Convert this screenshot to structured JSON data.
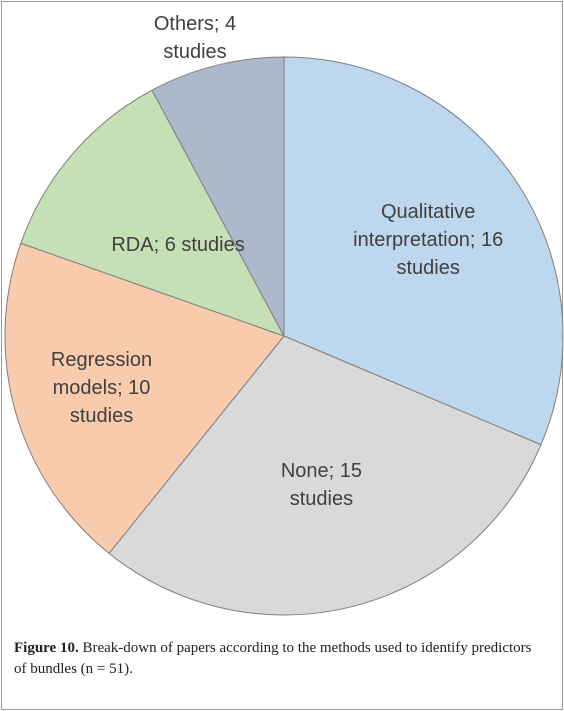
{
  "chart_data": {
    "type": "pie",
    "categories": [
      "Qualitative interpretation; 16 studies",
      "None; 15 studies",
      "Regression models; 10 studies",
      "RDA; 6 studies",
      "Others; 4 studies"
    ],
    "values": [
      16,
      15,
      10,
      6,
      4
    ],
    "colors": [
      "#bdd7ee",
      "#d9d9d9",
      "#f8cbad",
      "#c5e0b4",
      "#adb9ca"
    ],
    "start_angle": 0,
    "direction": "clockwise",
    "caption_label": "Figure 10.",
    "caption": "Break-down of papers according to the methods used to identify predictors of bundles (n = 51)."
  }
}
